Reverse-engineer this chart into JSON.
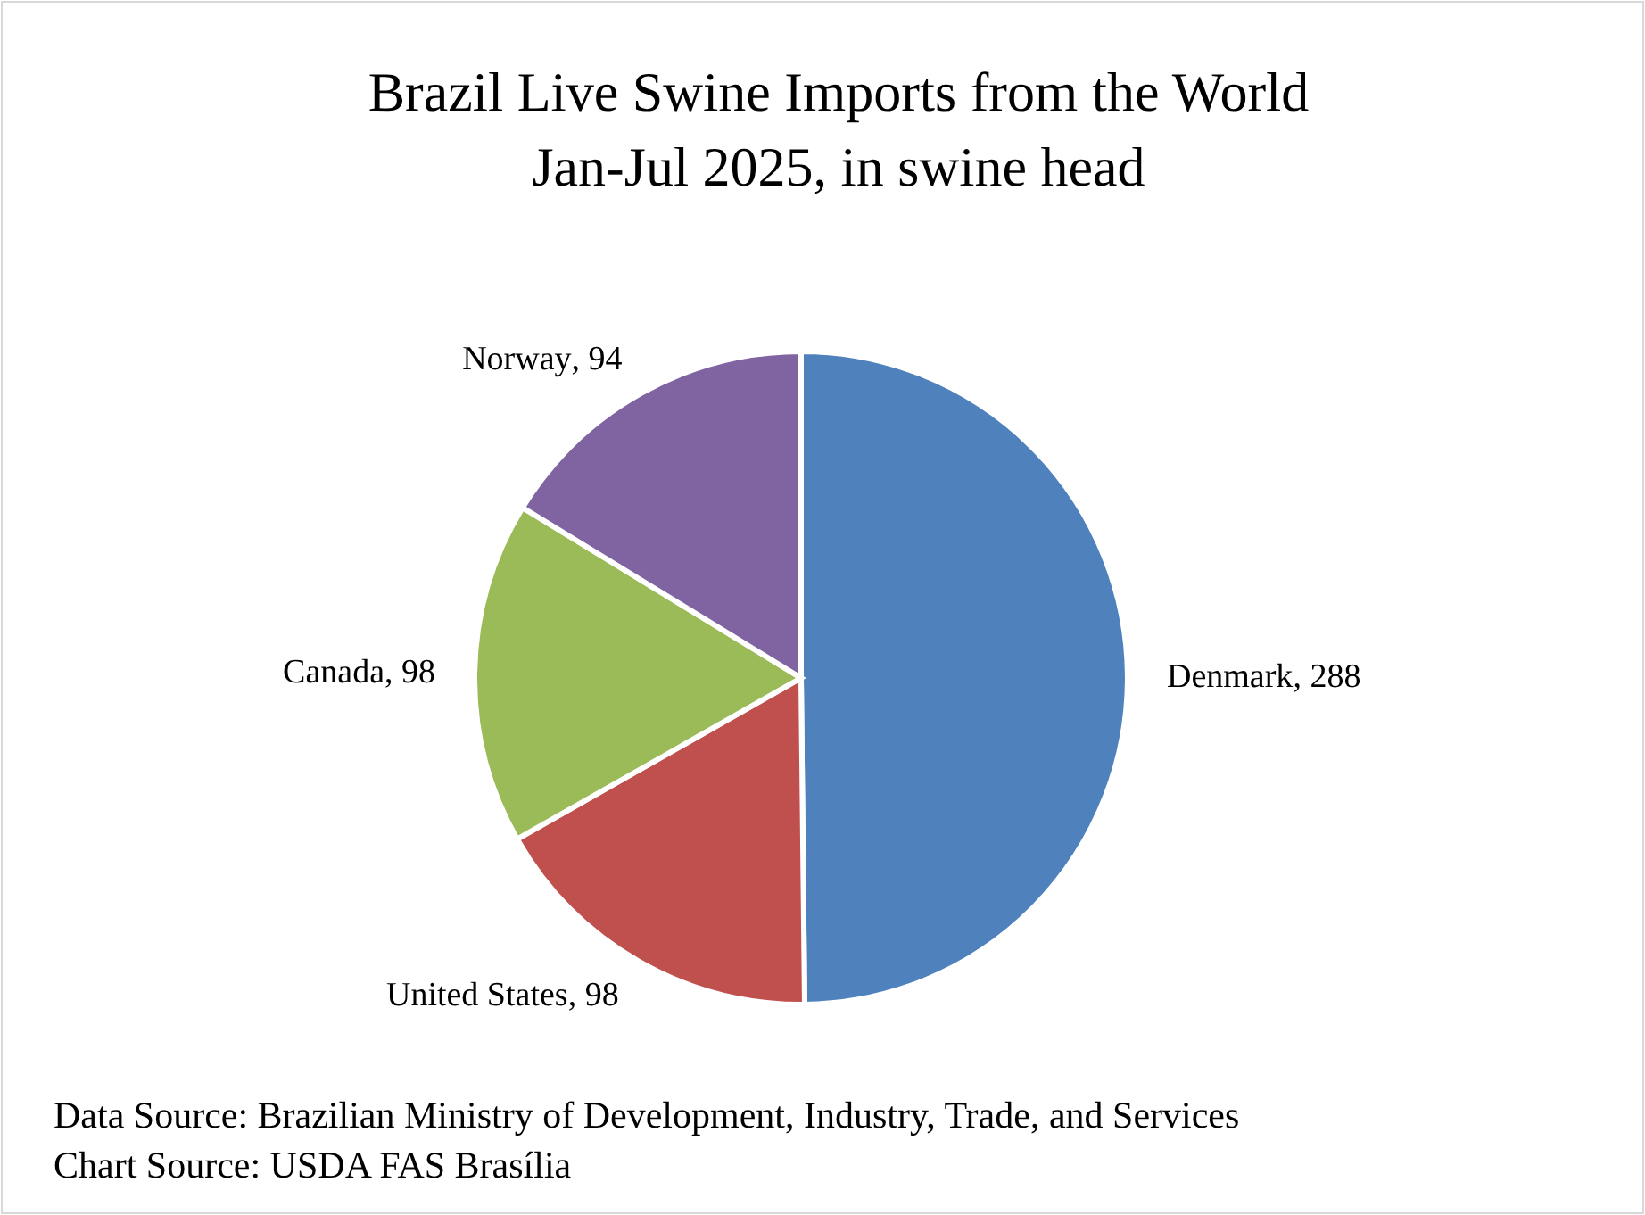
{
  "chart_data": {
    "type": "pie",
    "title": "Brazil Live Swine Imports from the World\nJan-Jul 2025, in swine head",
    "categories": [
      "Denmark",
      "United States",
      "Canada",
      "Norway"
    ],
    "values": [
      288,
      98,
      98,
      94
    ],
    "colors": [
      "#4f81bd",
      "#c0504d",
      "#9bbb59",
      "#8064a2"
    ],
    "value_labels": [
      ", 288",
      ", 98",
      ", 98",
      ", 94"
    ],
    "legend": false,
    "annotations": [
      "Data Source: Brazilian Ministry of Development, Industry, Trade, and Services",
      "Chart Source: USDA FAS Brasília"
    ]
  }
}
